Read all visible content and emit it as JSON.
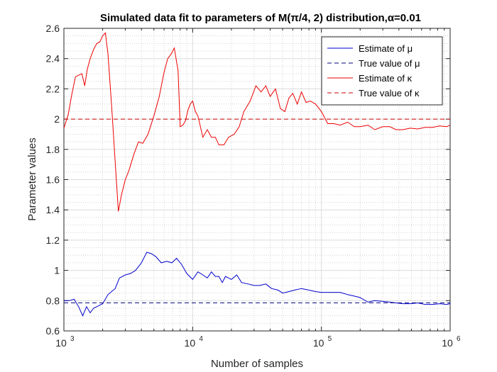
{
  "chart_data": {
    "type": "line",
    "title": "Simulated data fit to parameters of M(π/4, 2) distribution,α=0.01",
    "xlabel": "Number of samples",
    "ylabel": "Parameter values",
    "xscale": "log",
    "xlim": [
      1000,
      1000000
    ],
    "ylim": [
      0.6,
      2.6
    ],
    "grid": "on (major and minor)",
    "legend_position": "top-right",
    "x_tick_labels": [
      {
        "base": "10",
        "exp": "3"
      },
      {
        "base": "10",
        "exp": "4"
      },
      {
        "base": "10",
        "exp": "5"
      },
      {
        "base": "10",
        "exp": "6"
      }
    ],
    "y_ticks": [
      0.6,
      0.8,
      1,
      1.2,
      1.4,
      1.6,
      1.8,
      2,
      2.2,
      2.4,
      2.6
    ],
    "y_tick_labels": [
      "0.6",
      "0.8",
      "1",
      "1.2",
      "1.4",
      "1.6",
      "1.8",
      "2",
      "2.2",
      "2.4",
      "2.6"
    ],
    "series": [
      {
        "name": "Estimate of μ",
        "color": "#0000cc",
        "style": "solid",
        "points": [
          [
            1000,
            0.8
          ],
          [
            1100,
            0.8
          ],
          [
            1200,
            0.81
          ],
          [
            1300,
            0.76
          ],
          [
            1400,
            0.7
          ],
          [
            1500,
            0.76
          ],
          [
            1600,
            0.72
          ],
          [
            1700,
            0.75
          ],
          [
            1800,
            0.76
          ],
          [
            2000,
            0.78
          ],
          [
            2200,
            0.84
          ],
          [
            2500,
            0.88
          ],
          [
            2700,
            0.95
          ],
          [
            3000,
            0.97
          ],
          [
            3300,
            0.98
          ],
          [
            3600,
            1.0
          ],
          [
            4000,
            1.05
          ],
          [
            4400,
            1.12
          ],
          [
            4800,
            1.11
          ],
          [
            5200,
            1.09
          ],
          [
            5700,
            1.05
          ],
          [
            6300,
            1.06
          ],
          [
            6900,
            1.05
          ],
          [
            7500,
            1.08
          ],
          [
            8200,
            1.04
          ],
          [
            9000,
            0.98
          ],
          [
            10000,
            0.94
          ],
          [
            11000,
            0.99
          ],
          [
            12000,
            0.97
          ],
          [
            13000,
            0.95
          ],
          [
            14000,
            0.99
          ],
          [
            15000,
            0.96
          ],
          [
            16000,
            0.96
          ],
          [
            17000,
            0.92
          ],
          [
            18000,
            0.96
          ],
          [
            20000,
            0.94
          ],
          [
            22000,
            0.97
          ],
          [
            24000,
            0.92
          ],
          [
            27000,
            0.91
          ],
          [
            30000,
            0.9
          ],
          [
            33000,
            0.9
          ],
          [
            37000,
            0.91
          ],
          [
            41000,
            0.88
          ],
          [
            46000,
            0.87
          ],
          [
            50000,
            0.85
          ],
          [
            56000,
            0.86
          ],
          [
            62000,
            0.87
          ],
          [
            70000,
            0.88
          ],
          [
            80000,
            0.87
          ],
          [
            90000,
            0.86
          ],
          [
            100000,
            0.855
          ],
          [
            120000,
            0.855
          ],
          [
            140000,
            0.855
          ],
          [
            160000,
            0.84
          ],
          [
            180000,
            0.83
          ],
          [
            200000,
            0.82
          ],
          [
            230000,
            0.79
          ],
          [
            260000,
            0.8
          ],
          [
            300000,
            0.795
          ],
          [
            340000,
            0.79
          ],
          [
            380000,
            0.785
          ],
          [
            430000,
            0.78
          ],
          [
            490000,
            0.78
          ],
          [
            560000,
            0.785
          ],
          [
            640000,
            0.775
          ],
          [
            730000,
            0.775
          ],
          [
            830000,
            0.78
          ],
          [
            940000,
            0.775
          ],
          [
            1000000,
            0.78
          ]
        ]
      },
      {
        "name": "True value of μ",
        "color": "#00007a",
        "style": "dashed",
        "points": [
          [
            1000,
            0.7854
          ],
          [
            1000000,
            0.7854
          ]
        ]
      },
      {
        "name": "Estimate of κ",
        "color": "#ee0000",
        "style": "solid",
        "points": [
          [
            1000,
            1.94
          ],
          [
            1080,
            2.03
          ],
          [
            1150,
            2.16
          ],
          [
            1230,
            2.28
          ],
          [
            1300,
            2.29
          ],
          [
            1380,
            2.3
          ],
          [
            1450,
            2.22
          ],
          [
            1520,
            2.33
          ],
          [
            1600,
            2.4
          ],
          [
            1700,
            2.46
          ],
          [
            1800,
            2.5
          ],
          [
            1900,
            2.51
          ],
          [
            2000,
            2.55
          ],
          [
            2100,
            2.57
          ],
          [
            2200,
            2.43
          ],
          [
            2350,
            2.08
          ],
          [
            2500,
            1.72
          ],
          [
            2650,
            1.39
          ],
          [
            2800,
            1.5
          ],
          [
            3000,
            1.6
          ],
          [
            3200,
            1.66
          ],
          [
            3500,
            1.77
          ],
          [
            3800,
            1.85
          ],
          [
            4100,
            1.84
          ],
          [
            4500,
            1.9
          ],
          [
            5000,
            2.02
          ],
          [
            5500,
            2.15
          ],
          [
            6000,
            2.31
          ],
          [
            6400,
            2.4
          ],
          [
            6800,
            2.43
          ],
          [
            7200,
            2.47
          ],
          [
            7700,
            2.32
          ],
          [
            8000,
            1.95
          ],
          [
            8400,
            1.96
          ],
          [
            8800,
            1.99
          ],
          [
            9200,
            2.06
          ],
          [
            9600,
            2.1
          ],
          [
            10000,
            2.12
          ],
          [
            10500,
            2.05
          ],
          [
            11000,
            2.02
          ],
          [
            12000,
            1.88
          ],
          [
            13000,
            1.93
          ],
          [
            14000,
            1.88
          ],
          [
            15000,
            1.88
          ],
          [
            16000,
            1.83
          ],
          [
            17500,
            1.83
          ],
          [
            19000,
            1.88
          ],
          [
            21000,
            1.9
          ],
          [
            23000,
            1.95
          ],
          [
            25000,
            2.05
          ],
          [
            28000,
            2.12
          ],
          [
            31000,
            2.22
          ],
          [
            34000,
            2.18
          ],
          [
            37000,
            2.22
          ],
          [
            40000,
            2.15
          ],
          [
            44000,
            2.2
          ],
          [
            48000,
            2.07
          ],
          [
            52000,
            2.05
          ],
          [
            56000,
            2.14
          ],
          [
            60000,
            2.17
          ],
          [
            65000,
            2.1
          ],
          [
            70000,
            2.18
          ],
          [
            76000,
            2.11
          ],
          [
            82000,
            2.12
          ],
          [
            90000,
            2.1
          ],
          [
            100000,
            2.05
          ],
          [
            112000,
            1.97
          ],
          [
            125000,
            1.97
          ],
          [
            140000,
            1.96
          ],
          [
            160000,
            1.98
          ],
          [
            180000,
            1.95
          ],
          [
            200000,
            1.95
          ],
          [
            230000,
            1.96
          ],
          [
            260000,
            1.93
          ],
          [
            300000,
            1.95
          ],
          [
            340000,
            1.95
          ],
          [
            380000,
            1.93
          ],
          [
            430000,
            1.93
          ],
          [
            490000,
            1.94
          ],
          [
            560000,
            1.935
          ],
          [
            640000,
            1.945
          ],
          [
            730000,
            1.945
          ],
          [
            830000,
            1.955
          ],
          [
            940000,
            1.95
          ],
          [
            1000000,
            1.96
          ]
        ]
      },
      {
        "name": "True value of κ",
        "color": "#cc0000",
        "style": "dashed",
        "points": [
          [
            1000,
            2.0
          ],
          [
            1000000,
            2.0
          ]
        ]
      }
    ]
  }
}
